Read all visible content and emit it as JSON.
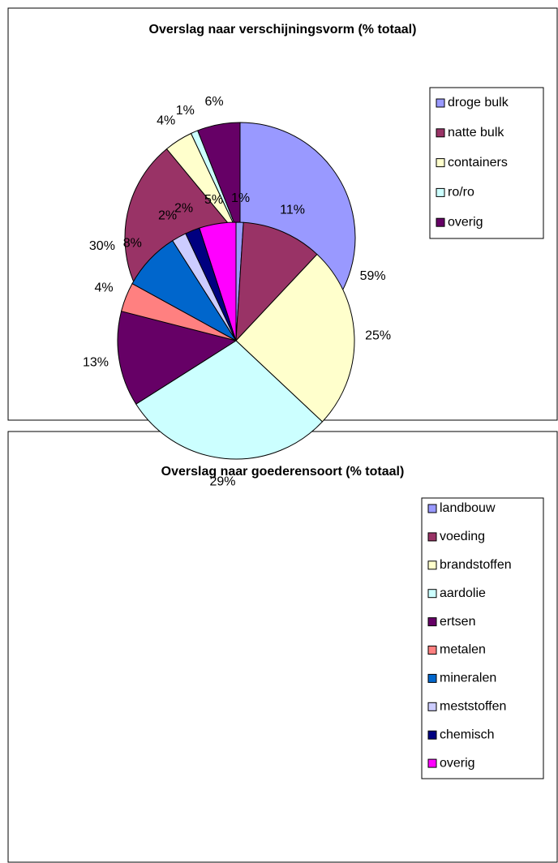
{
  "chart_data": [
    {
      "type": "pie",
      "title": "Overslag naar verschijningsvorm (% totaal)",
      "categories": [
        "droge bulk",
        "natte bulk",
        "containers",
        "ro/ro",
        "overig"
      ],
      "values": [
        59,
        30,
        4,
        1,
        6
      ],
      "value_labels": [
        "59%",
        "30%",
        "4%",
        "1%",
        "6%"
      ],
      "colors": [
        "#9999ff",
        "#993366",
        "#ffffcc",
        "#ccffff",
        "#660066"
      ],
      "legend": "right"
    },
    {
      "type": "pie",
      "title": "Overslag naar goederensoort (% totaal)",
      "categories": [
        "landbouw",
        "voeding",
        "brandstoffen",
        "aardolie",
        "ertsen",
        "metalen",
        "mineralen",
        "meststoffen",
        "chemisch",
        "overig"
      ],
      "values": [
        1,
        11,
        25,
        29,
        13,
        4,
        8,
        2,
        2,
        5
      ],
      "value_labels": [
        "1%",
        "11%",
        "25%",
        "29%",
        "13%",
        "4%",
        "8%",
        "2%",
        "2%",
        "5%"
      ],
      "colors": [
        "#9999ff",
        "#993366",
        "#ffffcc",
        "#ccffff",
        "#660066",
        "#ff8080",
        "#0066cc",
        "#ccccff",
        "#000080",
        "#ff00ff"
      ],
      "legend": "right"
    }
  ]
}
